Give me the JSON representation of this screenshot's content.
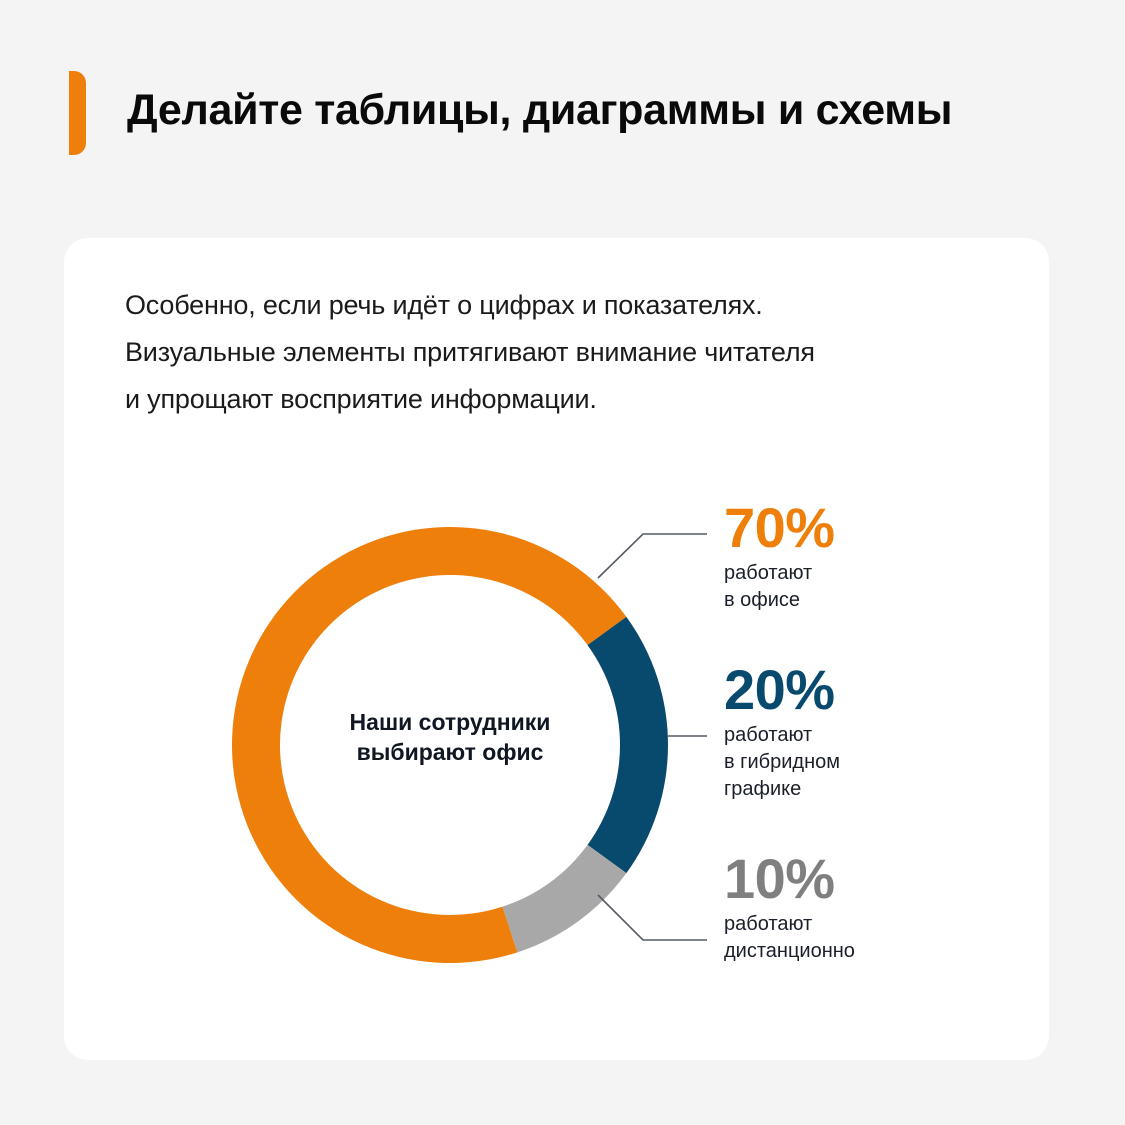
{
  "header": {
    "title": "Делайте таблицы, диаграммы и схемы",
    "accent_color": "#EE7F0A"
  },
  "card": {
    "intro_lines": [
      "Особенно, если речь идёт о цифрах и показателях.",
      "Визуальные элементы притягивают внимание читателя",
      "и упрощают восприятие информации."
    ],
    "center_label_lines": [
      "Наши сотрудники",
      "выбирают офис"
    ]
  },
  "legend": [
    {
      "percent": "70%",
      "lines": [
        "работают",
        "в офисе"
      ],
      "color": "#EE7F0A"
    },
    {
      "percent": "20%",
      "lines": [
        "работают",
        "в гибридном",
        "графике"
      ],
      "color": "#08496E"
    },
    {
      "percent": "10%",
      "lines": [
        "работают",
        "дистанционно"
      ],
      "color": "#7F7F7F"
    }
  ],
  "chart_data": {
    "type": "pie",
    "subtype": "donut",
    "title": "Наши сотрудники выбирают офис",
    "categories": [
      "работают в офисе",
      "работают в гибридном графике",
      "работают дистанционно"
    ],
    "values": [
      70,
      20,
      10
    ],
    "unit": "%",
    "colors": [
      "#EE7F0A",
      "#08496E",
      "#A8A8A8"
    ],
    "legend_position": "right"
  }
}
